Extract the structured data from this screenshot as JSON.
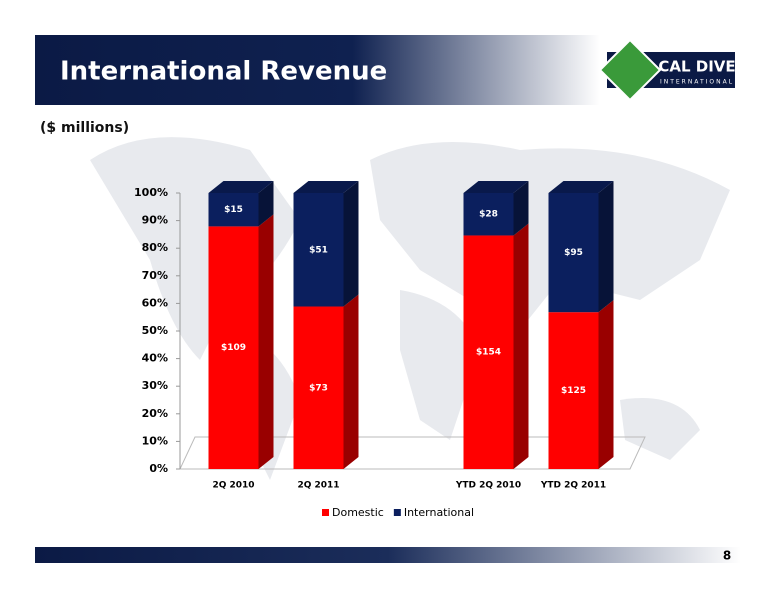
{
  "chart_data": {
    "type": "stacked_bar_100",
    "title": "International Revenue",
    "subtitle": "($ millions)",
    "categories": [
      "2Q 2010",
      "2Q 2011",
      null,
      "YTD 2Q 2010",
      "YTD 2Q 2011"
    ],
    "series": [
      {
        "name": "Domestic",
        "color": "#ff0000",
        "values": [
          109,
          73,
          null,
          154,
          125
        ],
        "value_labels": [
          "$109",
          "$73",
          null,
          "$154",
          "$125"
        ]
      },
      {
        "name": "International",
        "color": "#0b1f5e",
        "values": [
          15,
          51,
          null,
          28,
          95
        ],
        "value_labels": [
          "$15",
          "$51",
          null,
          "$28",
          "$95"
        ]
      }
    ],
    "ylim": [
      0,
      100
    ],
    "yticks": [
      {
        "value": 0,
        "label": "0%"
      },
      {
        "value": 10,
        "label": "10%"
      },
      {
        "value": 20,
        "label": "20%"
      },
      {
        "value": 30,
        "label": "30%"
      },
      {
        "value": 40,
        "label": "40%"
      },
      {
        "value": 50,
        "label": "50%"
      },
      {
        "value": 60,
        "label": "60%"
      },
      {
        "value": 70,
        "label": "70%"
      },
      {
        "value": 80,
        "label": "80%"
      },
      {
        "value": 90,
        "label": "90%"
      },
      {
        "value": 100,
        "label": "100%"
      }
    ],
    "legend": "bottom"
  },
  "logo": {
    "name": "CAL DIVE",
    "tagline": "INTERNATIONAL"
  },
  "page_number": 8
}
